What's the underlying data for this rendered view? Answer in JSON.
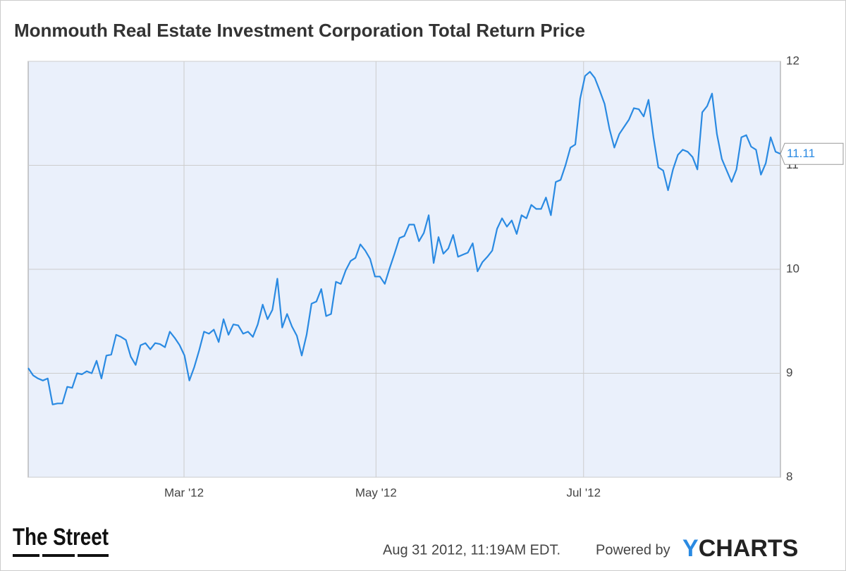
{
  "chart_data": {
    "type": "line",
    "title": "Monmouth Real Estate Investment Corporation Total Return Price",
    "values": [
      9.05,
      8.98,
      8.95,
      8.93,
      8.95,
      8.7,
      8.71,
      8.71,
      8.87,
      8.86,
      9.0,
      8.99,
      9.02,
      9.0,
      9.12,
      8.95,
      9.17,
      9.18,
      9.37,
      9.35,
      9.32,
      9.16,
      9.08,
      9.27,
      9.29,
      9.23,
      9.29,
      9.28,
      9.25,
      9.4,
      9.34,
      9.27,
      9.17,
      8.93,
      9.06,
      9.22,
      9.4,
      9.38,
      9.42,
      9.3,
      9.52,
      9.37,
      9.47,
      9.46,
      9.38,
      9.4,
      9.35,
      9.47,
      9.66,
      9.52,
      9.61,
      9.91,
      9.44,
      9.57,
      9.45,
      9.36,
      9.17,
      9.37,
      9.67,
      9.69,
      9.81,
      9.55,
      9.57,
      9.88,
      9.86,
      9.99,
      10.08,
      10.11,
      10.24,
      10.18,
      10.1,
      9.93,
      9.93,
      9.86,
      10.01,
      10.15,
      10.3,
      10.32,
      10.43,
      10.43,
      10.27,
      10.35,
      10.52,
      10.06,
      10.31,
      10.15,
      10.2,
      10.33,
      10.12,
      10.14,
      10.16,
      10.25,
      9.98,
      10.07,
      10.12,
      10.18,
      10.39,
      10.49,
      10.41,
      10.47,
      10.34,
      10.52,
      10.49,
      10.62,
      10.58,
      10.58,
      10.69,
      10.52,
      10.84,
      10.86,
      11.0,
      11.17,
      11.2,
      11.64,
      11.86,
      11.9,
      11.84,
      11.72,
      11.59,
      11.35,
      11.17,
      11.3,
      11.37,
      11.44,
      11.55,
      11.54,
      11.47,
      11.63,
      11.27,
      10.98,
      10.95,
      10.76,
      10.96,
      11.1,
      11.15,
      11.13,
      11.08,
      10.96,
      11.51,
      11.57,
      11.69,
      11.3,
      11.06,
      10.95,
      10.84,
      10.96,
      11.27,
      11.29,
      11.18,
      11.15,
      10.91,
      11.02,
      11.27,
      11.13,
      11.11
    ],
    "color": "#2a8ae2",
    "last_value": 11.11,
    "xlim": [
      0,
      154
    ],
    "xticks": [
      {
        "value": 31.9,
        "label": "Mar '12"
      },
      {
        "value": 71.2,
        "label": "May '12"
      },
      {
        "value": 113.7,
        "label": "Jul '12"
      }
    ],
    "ylim": [
      8,
      12
    ],
    "yticks": [
      8,
      9,
      10,
      11,
      12
    ],
    "grid": true
  },
  "footer": {
    "logo": "The Street",
    "timestamp": "Aug 31 2012, 11:19AM EDT.",
    "powered": "Powered by",
    "brand_y": "Y",
    "brand_rest": "CHARTS"
  }
}
